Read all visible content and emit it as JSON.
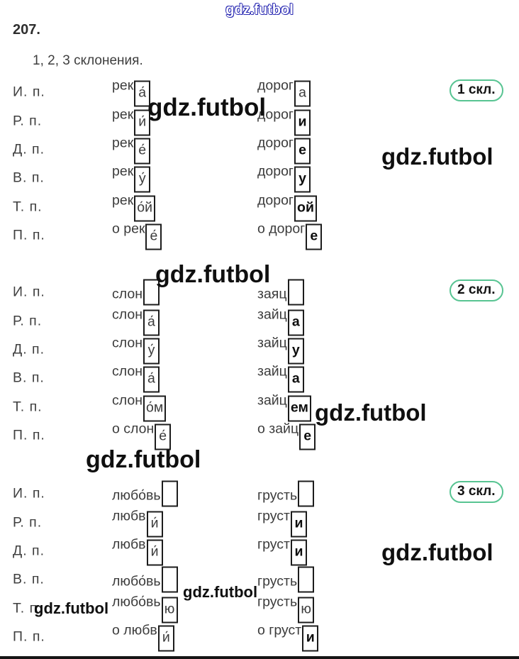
{
  "page": {
    "title_number": "207.",
    "subtitle": "1, 2, 3 склонения."
  },
  "watermarks": {
    "outline_text": "gdz.futbol",
    "solid_text": "gdz.futbol"
  },
  "colors": {
    "badge_border": "#58c492",
    "body_text": "#3c3c3c",
    "ending_box_border": "#1c1c1c",
    "watermark_outline_blue": "#2d2db4",
    "watermark_solid": "#0f0f0f"
  },
  "tables": [
    {
      "badge": "1 скл.",
      "rows": [
        {
          "case": "И. п.",
          "w1": {
            "stem": "рек",
            "end": "а́"
          },
          "w2": {
            "stem": "дорог",
            "end": "а"
          }
        },
        {
          "case": "Р. п.",
          "w1": {
            "stem": "рек",
            "end": "и́"
          },
          "w2": {
            "stem": "дорог",
            "end": "и"
          }
        },
        {
          "case": "Д. п.",
          "w1": {
            "stem": "рек",
            "end": "е́"
          },
          "w2": {
            "stem": "дорог",
            "end": "е"
          }
        },
        {
          "case": "В. п.",
          "w1": {
            "stem": "рек",
            "end": "у́"
          },
          "w2": {
            "stem": "дорог",
            "end": "у"
          }
        },
        {
          "case": "Т. п.",
          "w1": {
            "stem": "рек",
            "end": "о́й"
          },
          "w2": {
            "stem": "дорог",
            "end": "ой"
          }
        },
        {
          "case": "П. п.",
          "w1": {
            "stem": "о рек",
            "end": "е́"
          },
          "w2": {
            "stem": "о дорог",
            "end": "е"
          }
        }
      ]
    },
    {
      "badge": "2 скл.",
      "rows": [
        {
          "case": "И. п.",
          "w1": {
            "stem": "слон",
            "end": ""
          },
          "w2": {
            "stem": "заяц",
            "end": ""
          }
        },
        {
          "case": "Р. п.",
          "w1": {
            "stem": "слон",
            "end": "а́"
          },
          "w2": {
            "stem": "зайц",
            "end": "а"
          }
        },
        {
          "case": "Д. п.",
          "w1": {
            "stem": "слон",
            "end": "у́"
          },
          "w2": {
            "stem": "зайц",
            "end": "у"
          }
        },
        {
          "case": "В. п.",
          "w1": {
            "stem": "слон",
            "end": "а́"
          },
          "w2": {
            "stem": "зайц",
            "end": "а"
          }
        },
        {
          "case": "Т. п.",
          "w1": {
            "stem": "слон",
            "end": "о́м"
          },
          "w2": {
            "stem": "зайц",
            "end": "ем"
          }
        },
        {
          "case": "П. п.",
          "w1": {
            "stem": "о слон",
            "end": "е́"
          },
          "w2": {
            "stem": "о зайц",
            "end": "е"
          }
        }
      ]
    },
    {
      "badge": "3 скл.",
      "rows": [
        {
          "case": "И. п.",
          "w1": {
            "stem": "любо́вь",
            "end": ""
          },
          "w2": {
            "stem": "грусть",
            "end": ""
          }
        },
        {
          "case": "Р. п.",
          "w1": {
            "stem": "любв",
            "end": "и́"
          },
          "w2": {
            "stem": "груст",
            "end": "и"
          }
        },
        {
          "case": "Д. п.",
          "w1": {
            "stem": "любв",
            "end": "и́"
          },
          "w2": {
            "stem": "груст",
            "end": "и"
          }
        },
        {
          "case": "В. п.",
          "w1": {
            "stem": "любо́вь",
            "end": ""
          },
          "w2": {
            "stem": "грусть",
            "end": ""
          }
        },
        {
          "case": "Т. п.",
          "w1": {
            "stem": "любо́вь",
            "end": "ю"
          },
          "w2": {
            "stem": "грусть",
            "end": "ю"
          }
        },
        {
          "case": "П. п.",
          "w1": {
            "stem": "о любв",
            "end": "и́"
          },
          "w2": {
            "stem": "о груст",
            "end": "и"
          }
        }
      ]
    }
  ]
}
